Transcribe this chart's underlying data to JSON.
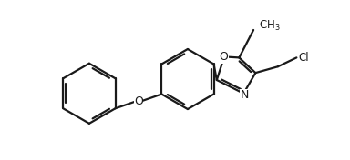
{
  "background_color": "#ffffff",
  "line_color": "#1a1a1a",
  "line_width": 1.6,
  "font_size": 8.5,
  "figsize": [
    3.84,
    1.76
  ],
  "dpi": 100,
  "xlim": [
    0.0,
    7.8
  ],
  "ylim": [
    -0.5,
    3.8
  ]
}
